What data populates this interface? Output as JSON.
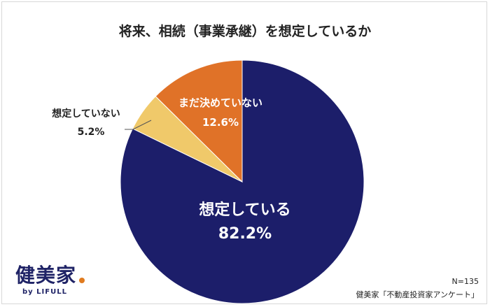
{
  "chart_data": {
    "type": "pie",
    "title": "将来、相続（事業承継）を想定しているか",
    "slices": [
      {
        "label": "想定している",
        "value": 82.2,
        "display": "82.2%",
        "color": "#1c1e6a"
      },
      {
        "label": "想定していない",
        "value": 5.2,
        "display": "5.2%",
        "color": "#f0c96a"
      },
      {
        "label": "まだ決めていない",
        "value": 12.6,
        "display": "12.6%",
        "color": "#e07228"
      }
    ],
    "start_angle_deg": 0,
    "direction": "clockwise"
  },
  "logo": {
    "main": "健美家",
    "sub": "by LIFULL"
  },
  "footer": {
    "n": "N=135",
    "source": "健美家「不動産投資家アンケート」"
  }
}
